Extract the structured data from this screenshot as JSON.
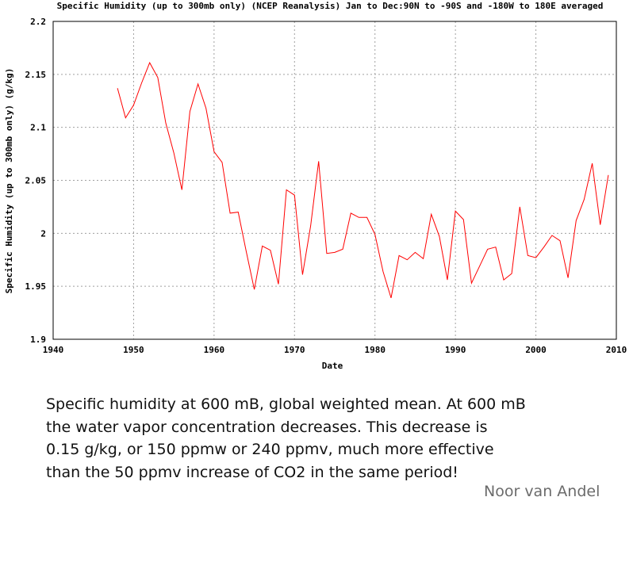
{
  "chart_data": {
    "type": "line",
    "title": "Specific Humidity (up to 300mb only) (NCEP Reanalysis) Jan to Dec:90N to -90S and -180W to 180E averaged",
    "xlabel": "Date",
    "ylabel": "Specific Humidity (up to 300mb only) (g/kg)",
    "xlim": [
      1940,
      2010
    ],
    "ylim": [
      1.9,
      2.2
    ],
    "x_ticks": [
      "1940",
      "1950",
      "1960",
      "1970",
      "1980",
      "1990",
      "2000",
      "2010"
    ],
    "y_ticks": [
      "1.9",
      "1.95",
      "2",
      "2.05",
      "2.1",
      "2.15",
      "2.2"
    ],
    "x_tick_values": [
      1940,
      1950,
      1960,
      1970,
      1980,
      1990,
      2000,
      2010
    ],
    "y_tick_values": [
      1.9,
      1.95,
      2.0,
      2.05,
      2.1,
      2.15,
      2.2
    ],
    "grid": true,
    "series": [
      {
        "name": "Specific Humidity",
        "color": "#ff0000",
        "x": [
          1948,
          1949,
          1950,
          1951,
          1952,
          1953,
          1954,
          1955,
          1956,
          1957,
          1958,
          1959,
          1960,
          1961,
          1962,
          1963,
          1964,
          1965,
          1966,
          1967,
          1968,
          1969,
          1970,
          1971,
          1972,
          1973,
          1974,
          1975,
          1976,
          1977,
          1978,
          1979,
          1980,
          1981,
          1982,
          1983,
          1984,
          1985,
          1986,
          1987,
          1988,
          1989,
          1990,
          1991,
          1992,
          1993,
          1994,
          1995,
          1996,
          1997,
          1998,
          1999,
          2000,
          2001,
          2002,
          2003,
          2004,
          2005,
          2006,
          2007,
          2008,
          2009
        ],
        "values": [
          2.137,
          2.109,
          2.121,
          2.142,
          2.161,
          2.147,
          2.104,
          2.076,
          2.041,
          2.115,
          2.141,
          2.118,
          2.077,
          2.067,
          2.019,
          2.02,
          1.983,
          1.947,
          1.988,
          1.984,
          1.952,
          2.041,
          2.036,
          1.961,
          2.007,
          2.068,
          1.981,
          1.982,
          1.985,
          2.019,
          2.015,
          2.015,
          1.999,
          1.964,
          1.939,
          1.979,
          1.975,
          1.982,
          1.976,
          2.018,
          1.997,
          1.956,
          2.021,
          2.013,
          1.953,
          1.969,
          1.985,
          1.987,
          1.956,
          1.962,
          2.025,
          1.979,
          1.977,
          1.987,
          1.998,
          1.993,
          1.958,
          2.012,
          2.032,
          2.066,
          2.008,
          2.055
        ]
      }
    ]
  },
  "caption": {
    "lines": [
      "Specific humidity at 600 mB, global weighted mean. At 600 mB",
      "the water vapor concentration decreases. This decrease is",
      "0.15 g/kg, or 150 ppmw or 240 ppmv, much more effective",
      "than the 50 ppmv increase of CO2 in the same period!"
    ],
    "author": "Noor van Andel"
  }
}
